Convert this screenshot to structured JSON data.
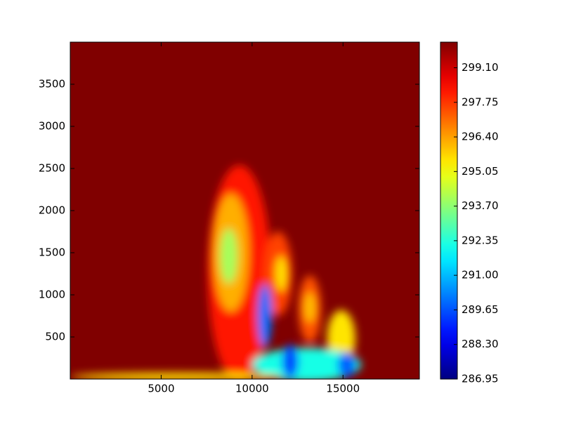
{
  "chart_data": {
    "type": "contourf",
    "xlim": [
      0,
      19200
    ],
    "ylim": [
      0,
      4000
    ],
    "xticks": [
      5000,
      10000,
      15000
    ],
    "yticks": [
      500,
      1000,
      1500,
      2000,
      2500,
      3000,
      3500
    ],
    "colormap": "jet",
    "clim": [
      286.95,
      300.1
    ],
    "background_value": 300.1,
    "colorbar_ticks": [
      286.95,
      {
        "value": 288.3,
        "label": "288.30"
      },
      289.65,
      {
        "value": 291,
        "label": "291.00"
      },
      292.35,
      {
        "value": 293.7,
        "label": "293.70"
      },
      295.05,
      {
        "value": 296.4,
        "label": "296.40"
      },
      297.75,
      {
        "value": 299.1,
        "label": "299.10"
      }
    ],
    "features": [
      {
        "x": 9300,
        "y": 1250,
        "rx": 1740,
        "ry": 1290,
        "value": 298.2
      },
      {
        "x": 8835,
        "y": 1500,
        "rx": 970,
        "ry": 700,
        "value": 296.2
      },
      {
        "x": 8720,
        "y": 1460,
        "rx": 465,
        "ry": 330,
        "value": 294.0
      },
      {
        "x": 11430,
        "y": 1250,
        "rx": 775,
        "ry": 500,
        "value": 297.6
      },
      {
        "x": 11600,
        "y": 1250,
        "rx": 300,
        "ry": 210,
        "value": 295.5
      },
      {
        "x": 13175,
        "y": 830,
        "rx": 620,
        "ry": 400,
        "value": 297.4
      },
      {
        "x": 13175,
        "y": 850,
        "rx": 310,
        "ry": 180,
        "value": 296.0
      },
      {
        "x": 14900,
        "y": 480,
        "rx": 780,
        "ry": 340,
        "value": 295.5
      },
      {
        "x": 13000,
        "y": 170,
        "rx": 3000,
        "ry": 200,
        "value": 292.2
      },
      {
        "x": 10700,
        "y": 750,
        "rx": 390,
        "ry": 375,
        "value": 290.0
      },
      {
        "x": 12100,
        "y": 210,
        "rx": 450,
        "ry": 200,
        "value": 289.5
      },
      {
        "x": 15200,
        "y": 170,
        "rx": 500,
        "ry": 150,
        "value": 289.8
      },
      {
        "x": 5800,
        "y": 25,
        "rx": 5800,
        "ry": 50,
        "value": 295.5
      }
    ]
  }
}
